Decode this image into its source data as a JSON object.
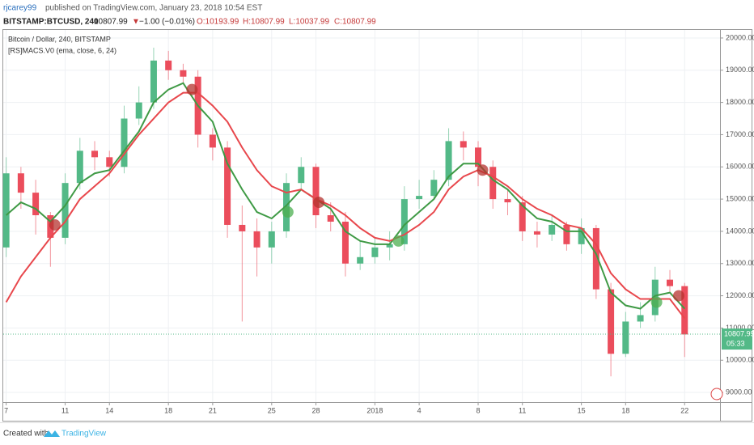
{
  "header": {
    "author": "rjcarey99",
    "published": "published on TradingView.com, January 23, 2018 10:54 EST",
    "symbol": "BITSTAMP:BTCUSD, 240",
    "price": "10807.99",
    "arrow": "▼",
    "change": "−1.00 (−0.01%)",
    "open": "O:10193.99",
    "high": "H:10807.99",
    "low": "L:10037.99",
    "close": "C:10807.99"
  },
  "chart_data": {
    "type": "candlestick",
    "title": "Bitcoin / Dollar, 240, BITSTAMP",
    "subtitle": "[RS]MACS.V0 (ema, close, 6, 24)",
    "x": [
      0,
      1,
      2,
      3,
      4,
      5,
      6,
      7,
      8,
      9,
      10,
      11,
      12,
      13,
      14,
      15,
      16,
      17,
      18,
      19,
      20,
      21,
      22,
      23,
      24,
      25,
      26,
      27,
      28,
      29,
      30,
      31,
      32,
      33,
      34,
      35,
      36,
      37,
      38,
      39,
      40,
      41,
      42,
      43,
      44,
      45,
      46
    ],
    "open": [
      13500,
      15800,
      15200,
      14500,
      13800,
      15500,
      16500,
      16300,
      16000,
      17500,
      18000,
      19300,
      19000,
      18800,
      17000,
      16600,
      14200,
      14000,
      13500,
      14000,
      15500,
      16000,
      14500,
      14300,
      13000,
      13200,
      13500,
      13600,
      15000,
      15100,
      15600,
      16800,
      16600,
      16000,
      15000,
      14900,
      14000,
      13900,
      14200,
      13600,
      14100,
      12200,
      10200,
      11200,
      11400,
      12500,
      12300
    ],
    "high": [
      16300,
      16000,
      15600,
      14600,
      15800,
      16900,
      16800,
      16500,
      17900,
      18500,
      19700,
      19600,
      19200,
      19000,
      17200,
      16800,
      14800,
      14400,
      14300,
      15800,
      16300,
      16100,
      14900,
      14600,
      13700,
      13800,
      14000,
      15400,
      15600,
      15900,
      17200,
      17100,
      16800,
      16200,
      15300,
      15100,
      14300,
      14500,
      14300,
      14400,
      14200,
      12400,
      11500,
      11800,
      12900,
      12800,
      12400
    ],
    "low": [
      13200,
      14700,
      13900,
      12900,
      13600,
      15300,
      15900,
      15700,
      15800,
      17300,
      17800,
      18700,
      18600,
      16600,
      16200,
      13800,
      11200,
      12600,
      13000,
      13800,
      15300,
      14100,
      14000,
      12600,
      12800,
      13000,
      13100,
      13400,
      14700,
      15000,
      15400,
      16200,
      15400,
      14700,
      14500,
      13700,
      13500,
      13700,
      13400,
      13300,
      11900,
      9500,
      10100,
      11000,
      11200,
      12100,
      10100
    ],
    "close": [
      15800,
      15200,
      14500,
      13800,
      15500,
      16500,
      16300,
      16000,
      17500,
      18000,
      19300,
      19000,
      18800,
      17000,
      16600,
      14200,
      14000,
      13500,
      14000,
      15500,
      16000,
      14500,
      14300,
      13000,
      13200,
      13500,
      13600,
      15000,
      15100,
      15600,
      16800,
      16600,
      16000,
      15000,
      14900,
      14000,
      13900,
      14200,
      13600,
      14100,
      12200,
      10200,
      11200,
      11400,
      12500,
      12300,
      10800
    ],
    "up_color": "#53b987",
    "down_color": "#eb4d5c",
    "series": [
      {
        "color": "#3f9a45",
        "values": [
          14500,
          14900,
          14700,
          14300,
          14800,
          15500,
          15800,
          15900,
          16500,
          17100,
          18000,
          18400,
          18600,
          17900,
          17400,
          16100,
          15300,
          14600,
          14400,
          14800,
          15300,
          15000,
          14700,
          14000,
          13700,
          13600,
          13600,
          14200,
          14600,
          15000,
          15700,
          16100,
          16100,
          15600,
          15300,
          14800,
          14400,
          14300,
          14000,
          14000,
          13300,
          12100,
          11700,
          11600,
          12000,
          12100,
          11600
        ]
      },
      {
        "color": "#e8474c",
        "values": [
          11800,
          12600,
          13200,
          13800,
          14300,
          15000,
          15400,
          15800,
          16400,
          17000,
          17500,
          18000,
          18300,
          18300,
          17900,
          17400,
          16600,
          15900,
          15400,
          15200,
          15300,
          15000,
          14800,
          14500,
          14100,
          13800,
          13700,
          13900,
          14200,
          14600,
          15300,
          15700,
          15900,
          15700,
          15400,
          15000,
          14700,
          14500,
          14200,
          14100,
          13600,
          12700,
          12200,
          11900,
          11900,
          11900,
          11300
        ]
      }
    ],
    "signals": [
      {
        "x": 3.3,
        "y": 14200,
        "color": "#b5332f"
      },
      {
        "x": 12.6,
        "y": 18400,
        "color": "#b5332f"
      },
      {
        "x": 19.1,
        "y": 14600,
        "color": "#4caf50"
      },
      {
        "x": 21.2,
        "y": 14900,
        "color": "#b5332f"
      },
      {
        "x": 26.6,
        "y": 13700,
        "color": "#4caf50"
      },
      {
        "x": 32.3,
        "y": 15900,
        "color": "#b5332f"
      },
      {
        "x": 44.1,
        "y": 11800,
        "color": "#4caf50"
      },
      {
        "x": 45.6,
        "y": 12000,
        "color": "#b5332f"
      }
    ],
    "last_price": {
      "value": 10807.99,
      "label": "10807.99"
    },
    "countdown": "05:33",
    "xlim": [
      -0.2,
      48.4
    ],
    "ylim": [
      8700,
      20250
    ],
    "xticks": [
      {
        "value": 0,
        "label": "7"
      },
      {
        "value": 4,
        "label": "11"
      },
      {
        "value": 7,
        "label": "14"
      },
      {
        "value": 11,
        "label": "18"
      },
      {
        "value": 14,
        "label": "21"
      },
      {
        "value": 18,
        "label": "25"
      },
      {
        "value": 21,
        "label": "28"
      },
      {
        "value": 25,
        "label": "2018"
      },
      {
        "value": 28,
        "label": "4"
      },
      {
        "value": 32,
        "label": "8"
      },
      {
        "value": 35,
        "label": "11"
      },
      {
        "value": 39,
        "label": "15"
      },
      {
        "value": 42,
        "label": "18"
      },
      {
        "value": 46,
        "label": "22"
      }
    ],
    "yticks": [
      {
        "value": 9000,
        "label": "9000.00"
      },
      {
        "value": 10000,
        "label": "10000.00"
      },
      {
        "value": 11000,
        "label": "11000.00"
      },
      {
        "value": 12000,
        "label": "12000.00"
      },
      {
        "value": 13000,
        "label": "13000.00"
      },
      {
        "value": 14000,
        "label": "14000.00"
      },
      {
        "value": 15000,
        "label": "15000.00"
      },
      {
        "value": 16000,
        "label": "16000.00"
      },
      {
        "value": 17000,
        "label": "17000.00"
      },
      {
        "value": 18000,
        "label": "18000.00"
      },
      {
        "value": 19000,
        "label": "19000.00"
      },
      {
        "value": 20000,
        "label": "20000.00"
      }
    ],
    "grid": true
  },
  "footer": {
    "created": "Created with",
    "brand": "TradingView"
  }
}
